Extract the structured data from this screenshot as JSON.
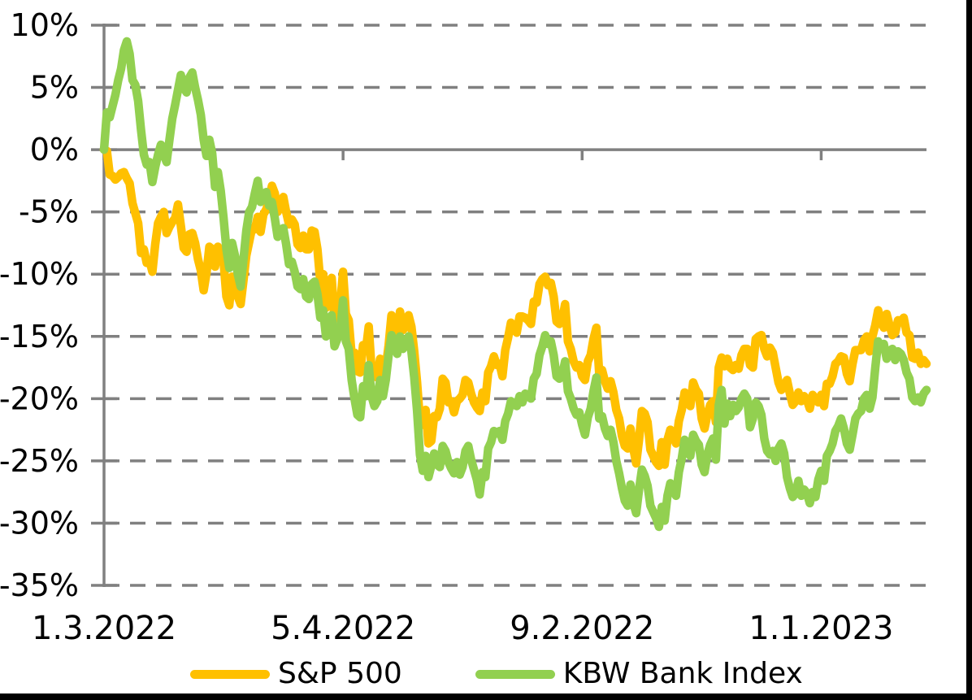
{
  "frame": {
    "background": "#FFFFFF",
    "border_color": "#000000",
    "text_color": "#000000"
  },
  "chart_data": {
    "type": "line",
    "title": "",
    "xlabel": "",
    "ylabel": "",
    "x_axis": {
      "tick_labels": [
        "1.3.2022",
        "5.4.2022",
        "9.2.2022",
        "1.1.2023"
      ],
      "tick_positions": [
        0,
        84,
        168,
        252
      ],
      "unit": "trading days starting 1.3.2022",
      "total_points": 290
    },
    "y_axis": {
      "tick_labels": [
        "10%",
        "5%",
        "0%",
        "-5%",
        "-10%",
        "-15%",
        "-20%",
        "-25%",
        "-30%",
        "-35%"
      ],
      "tick_values": [
        10,
        5,
        0,
        -5,
        -10,
        -15,
        -20,
        -25,
        -30,
        -35
      ],
      "ylim": [
        -35,
        10
      ],
      "unit": "percent change since 1.3.2022"
    },
    "grid": {
      "horizontal_dashed": true,
      "zero_line_solid": true,
      "color": "#808080"
    },
    "legend": {
      "position": "bottom"
    },
    "series": [
      {
        "name": "S&P 500",
        "color": "#FFC000",
        "values": [
          0,
          -0.1,
          -2.0,
          -2.1,
          -2.4,
          -2.2,
          -1.9,
          -1.8,
          -2.3,
          -2.7,
          -4.3,
          -5.1,
          -5.9,
          -8.3,
          -8.0,
          -9.1,
          -8.9,
          -9.8,
          -7.6,
          -5.9,
          -5.4,
          -5.0,
          -6.7,
          -6.2,
          -5.8,
          -5.5,
          -4.4,
          -6.1,
          -7.9,
          -8.2,
          -6.8,
          -6.7,
          -7.5,
          -8.8,
          -9.7,
          -11.3,
          -9.9,
          -7.8,
          -8.0,
          -9.4,
          -7.8,
          -8.3,
          -9.0,
          -11.8,
          -12.5,
          -10.2,
          -10.6,
          -11.8,
          -12.4,
          -10.5,
          -8.5,
          -7.4,
          -6.3,
          -6.4,
          -5.4,
          -6.6,
          -5.2,
          -4.8,
          -4.1,
          -2.9,
          -3.5,
          -5.0,
          -4.6,
          -3.8,
          -5.0,
          -6.0,
          -5.6,
          -6.0,
          -7.6,
          -7.9,
          -6.9,
          -8.0,
          -8.0,
          -6.5,
          -6.6,
          -8.0,
          -10.6,
          -10.0,
          -12.7,
          -12.5,
          -10.3,
          -13.6,
          -13.0,
          -12.5,
          -9.8,
          -13.2,
          -13.7,
          -16.5,
          -16.3,
          -17.8,
          -17.9,
          -15.7,
          -16.1,
          -14.2,
          -17.7,
          -18.2,
          -18.3,
          -16.8,
          -18.3,
          -17.5,
          -15.7,
          -13.3,
          -13.9,
          -14.6,
          -13.0,
          -14.5,
          -14.2,
          -13.3,
          -14.2,
          -16.2,
          -18.7,
          -21.8,
          -22.1,
          -20.9,
          -23.6,
          -23.4,
          -21.4,
          -21.5,
          -20.8,
          -18.4,
          -18.7,
          -20.3,
          -20.2,
          -21.1,
          -20.2,
          -20.0,
          -19.7,
          -18.5,
          -18.7,
          -19.6,
          -20.3,
          -20.7,
          -21.0,
          -19.5,
          -20.2,
          -17.9,
          -17.4,
          -16.6,
          -17.3,
          -17.2,
          -18.2,
          -16.1,
          -15.1,
          -13.9,
          -14.2,
          -14.7,
          -13.4,
          -13.4,
          -13.5,
          -13.7,
          -14.0,
          -12.2,
          -12.3,
          -10.8,
          -10.4,
          -10.2,
          -10.9,
          -10.7,
          -11.8,
          -13.8,
          -14.0,
          -13.7,
          -12.4,
          -15.4,
          -16.0,
          -17.0,
          -17.5,
          -17.3,
          -18.2,
          -18.5,
          -17.0,
          -16.5,
          -15.2,
          -14.3,
          -18.0,
          -17.7,
          -18.6,
          -19.2,
          -18.6,
          -19.5,
          -20.9,
          -21.6,
          -23.0,
          -23.8,
          -24.0,
          -22.4,
          -24.0,
          -25.2,
          -23.3,
          -21.0,
          -21.2,
          -21.9,
          -24.1,
          -24.6,
          -25.1,
          -25.4,
          -23.5,
          -25.3,
          -23.3,
          -22.5,
          -23.0,
          -23.6,
          -21.8,
          -20.9,
          -19.5,
          -20.1,
          -20.6,
          -18.7,
          -19.3,
          -19.6,
          -21.6,
          -22.4,
          -21.3,
          -20.5,
          -20.2,
          -21.9,
          -17.5,
          -16.7,
          -17.4,
          -16.8,
          -17.5,
          -17.7,
          -17.3,
          -17.6,
          -16.5,
          -16.0,
          -16.0,
          -17.3,
          -17.5,
          -15.2,
          -15.0,
          -14.9,
          -16.0,
          -16.6,
          -15.9,
          -16.3,
          -17.5,
          -18.7,
          -19.3,
          -18.9,
          -18.5,
          -19.6,
          -20.5,
          -20.2,
          -19.5,
          -20.2,
          -19.8,
          -20.1,
          -20.8,
          -19.7,
          -20.0,
          -20.3,
          -19.7,
          -20.6,
          -18.8,
          -18.8,
          -18.2,
          -17.2,
          -17.0,
          -16.6,
          -16.7,
          -18.0,
          -18.6,
          -17.2,
          -16.1,
          -16.1,
          -16.1,
          -15.3,
          -15.0,
          -16.2,
          -15.0,
          -14.1,
          -12.9,
          -13.8,
          -14.3,
          -13.2,
          -14.1,
          -14.9,
          -14.7,
          -13.7,
          -13.8,
          -13.5,
          -14.7,
          -14.9,
          -16.7,
          -16.8,
          -16.3,
          -17.2,
          -16.9,
          -17.2
        ]
      },
      {
        "name": "KBW Bank Index",
        "color": "#92D050",
        "values": [
          0,
          3.0,
          2.6,
          3.5,
          4.4,
          5.6,
          6.5,
          8.0,
          8.7,
          7.7,
          5.6,
          5.2,
          3.9,
          1.6,
          -0.4,
          -1.2,
          -1.0,
          -2.6,
          -1.4,
          -0.4,
          0.4,
          -0.4,
          -1.0,
          0.8,
          2.5,
          3.6,
          4.8,
          6.0,
          5.0,
          4.6,
          5.8,
          6.2,
          5.0,
          4.0,
          2.8,
          0.8,
          -0.5,
          0.8,
          -0.3,
          -3.0,
          -1.8,
          -3.3,
          -5.5,
          -8.0,
          -9.5,
          -7.5,
          -8.5,
          -10.0,
          -11.0,
          -8.8,
          -6.5,
          -5.0,
          -4.6,
          -3.5,
          -2.5,
          -4.2,
          -3.6,
          -3.4,
          -4.5,
          -4.2,
          -5.5,
          -7.0,
          -6.5,
          -6.3,
          -7.6,
          -9.2,
          -9.0,
          -9.8,
          -11.0,
          -11.2,
          -10.4,
          -11.8,
          -12.0,
          -10.8,
          -10.6,
          -11.6,
          -13.5,
          -12.9,
          -15.0,
          -14.7,
          -13.3,
          -15.8,
          -15.2,
          -14.6,
          -12.1,
          -15.4,
          -16.0,
          -18.5,
          -20.0,
          -21.3,
          -21.5,
          -19.0,
          -19.8,
          -17.3,
          -19.8,
          -20.6,
          -20.2,
          -18.5,
          -19.8,
          -18.5,
          -16.5,
          -14.9,
          -15.5,
          -16.4,
          -15.0,
          -16.0,
          -15.6,
          -15.0,
          -16.2,
          -18.3,
          -21.0,
          -24.5,
          -25.8,
          -24.6,
          -26.3,
          -25.4,
          -24.4,
          -25.3,
          -25.5,
          -23.8,
          -24.2,
          -25.1,
          -25.6,
          -26.0,
          -25.1,
          -26.1,
          -25.5,
          -24.2,
          -23.8,
          -24.9,
          -25.7,
          -26.5,
          -27.7,
          -25.9,
          -26.3,
          -24.0,
          -23.5,
          -22.6,
          -22.8,
          -22.6,
          -23.3,
          -21.8,
          -21.2,
          -20.2,
          -20.4,
          -20.6,
          -19.8,
          -20.3,
          -19.6,
          -19.7,
          -20.0,
          -18.4,
          -18.0,
          -16.5,
          -15.8,
          -14.9,
          -15.6,
          -15.4,
          -16.5,
          -18.2,
          -18.4,
          -18.1,
          -17.0,
          -19.4,
          -20.0,
          -20.8,
          -21.3,
          -21.1,
          -22.1,
          -22.9,
          -21.5,
          -20.8,
          -19.4,
          -18.3,
          -21.6,
          -21.4,
          -22.4,
          -23.0,
          -22.5,
          -23.5,
          -25.0,
          -26.0,
          -27.2,
          -28.2,
          -28.6,
          -26.9,
          -28.4,
          -29.2,
          -27.3,
          -25.7,
          -26.2,
          -27.0,
          -28.6,
          -29.1,
          -29.6,
          -30.3,
          -28.7,
          -29.8,
          -27.8,
          -26.8,
          -27.4,
          -27.8,
          -25.9,
          -24.8,
          -23.3,
          -24.2,
          -24.6,
          -22.9,
          -23.4,
          -23.7,
          -25.3,
          -25.9,
          -24.5,
          -23.7,
          -23.2,
          -24.9,
          -20.5,
          -19.3,
          -22.0,
          -20.4,
          -21.4,
          -20.5,
          -21.0,
          -20.7,
          -20.0,
          -19.6,
          -20.0,
          -22.3,
          -21.6,
          -20.3,
          -20.6,
          -21.3,
          -23.2,
          -24.2,
          -24.5,
          -24.2,
          -25.0,
          -24.0,
          -23.6,
          -24.4,
          -26.3,
          -27.2,
          -27.9,
          -27.6,
          -26.6,
          -27.8,
          -27.3,
          -27.6,
          -28.4,
          -27.5,
          -27.9,
          -26.5,
          -25.8,
          -26.6,
          -24.6,
          -24.2,
          -23.6,
          -22.6,
          -22.2,
          -21.6,
          -22.4,
          -23.6,
          -24.1,
          -22.9,
          -21.6,
          -21.2,
          -21.0,
          -20.0,
          -19.7,
          -20.8,
          -19.9,
          -17.5,
          -15.4,
          -15.9,
          -15.6,
          -16.8,
          -16.2,
          -16.0,
          -16.9,
          -16.2,
          -16.4,
          -16.9,
          -17.9,
          -18.4,
          -19.9,
          -20.2,
          -19.9,
          -20.3,
          -19.6,
          -19.3
        ]
      }
    ]
  }
}
